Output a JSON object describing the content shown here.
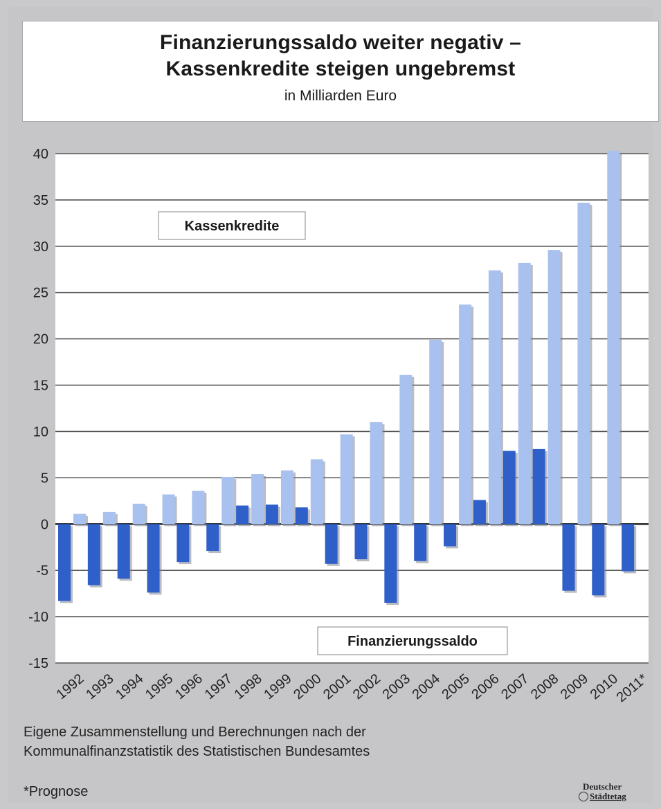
{
  "header": {
    "title_line1": "Finanzierungssaldo weiter negativ –",
    "title_line2": "Kassenkredite steigen ungebremst",
    "subtitle": "in Milliarden Euro"
  },
  "chart_data": {
    "type": "bar",
    "title": "Finanzierungssaldo weiter negativ – Kassenkredite steigen ungebremst",
    "subtitle": "in Milliarden Euro",
    "categories": [
      "1992",
      "1993",
      "1994",
      "1995",
      "1996",
      "1997",
      "1998",
      "1999",
      "2000",
      "2001",
      "2002",
      "2003",
      "2004",
      "2005",
      "2006",
      "2007",
      "2008",
      "2009",
      "2010",
      "2011*"
    ],
    "series": [
      {
        "name": "Finanzierungssaldo",
        "color": "#2f5fc8",
        "values": [
          -8.3,
          -6.6,
          -5.9,
          -7.4,
          -4.1,
          -2.9,
          2.0,
          2.1,
          1.8,
          -4.3,
          -3.8,
          -8.5,
          -4.0,
          -2.4,
          2.6,
          7.9,
          8.1,
          -7.2,
          -7.7,
          -5.1
        ]
      },
      {
        "name": "Kassenkredite",
        "color": "#a9c1ee",
        "values": [
          1.1,
          1.3,
          2.2,
          3.2,
          3.6,
          5.1,
          5.4,
          5.8,
          7.0,
          9.7,
          11.0,
          16.1,
          19.9,
          23.7,
          27.4,
          28.2,
          29.6,
          34.7,
          40.3,
          null
        ]
      }
    ],
    "ylim": [
      -15,
      40
    ],
    "yticks": [
      -15,
      -10,
      -5,
      0,
      5,
      10,
      15,
      20,
      25,
      30,
      35,
      40
    ],
    "grid": true,
    "legend": "labels inside plot"
  },
  "notes": {
    "source_line1": "Eigene Zusammenstellung und Berechnungen nach der",
    "source_line2": "Kommunalfinanzstatistik des Statistischen Bundesamtes",
    "footnote": "*Prognose"
  },
  "logo": {
    "line1": "Deutscher",
    "line2": "Städtetag"
  }
}
